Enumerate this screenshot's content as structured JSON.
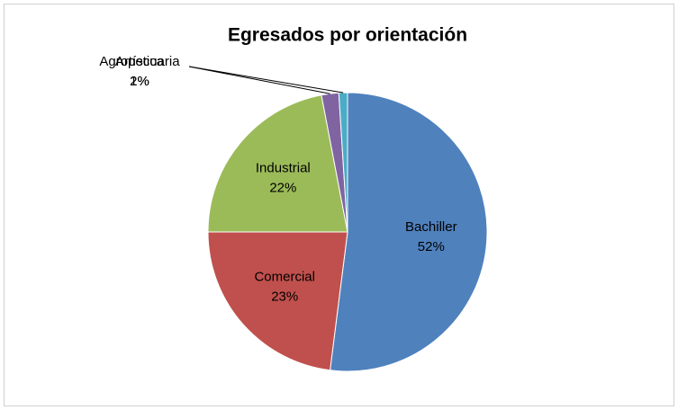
{
  "chart_data": {
    "type": "pie",
    "title": "Egresados por orientación",
    "categories": [
      "Bachiller",
      "Comercial",
      "Industrial",
      "Agropecuaria",
      "Artística"
    ],
    "values": [
      52,
      23,
      22,
      2,
      1
    ],
    "value_labels": [
      "52%",
      "23%",
      "22%",
      "2%",
      "1%"
    ],
    "colors": [
      "#4f81bd",
      "#c0504d",
      "#9bbb59",
      "#8064a2",
      "#4bacc6"
    ]
  }
}
